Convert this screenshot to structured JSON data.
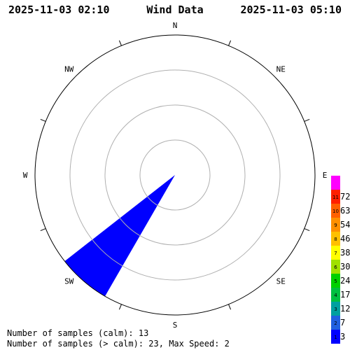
{
  "header": {
    "start_time": "2025-11-03 02:10",
    "title": "Wind Data",
    "end_time": "2025-11-03 05:10"
  },
  "footer": {
    "calm_samples_text": "Number of samples (calm): 13",
    "samples_text": "Number of samples (> calm): 23,  Max Speed: 2"
  },
  "colors": {
    "wedge": "#0000ff",
    "ring": "#b0b0b0",
    "outline": "#000000"
  },
  "chart_data": {
    "type": "wind-rose",
    "directions": [
      "N",
      "NE",
      "E",
      "SE",
      "S",
      "SW",
      "W",
      "NW"
    ],
    "rings": 4,
    "sectors": [
      {
        "from_deg": 210,
        "to_deg": 232,
        "radius_fraction": 1.0,
        "color": "#0000ff"
      }
    ],
    "scale": {
      "labels": [
        "3",
        "7",
        "12",
        "17",
        "24",
        "30",
        "38",
        "46",
        "54",
        "63",
        "72"
      ],
      "inner_labels": [
        "1",
        "2",
        "3",
        "4",
        "5",
        "6",
        "7",
        "8",
        "9",
        "10",
        "11",
        ""
      ],
      "colors": [
        "#0000ff",
        "#2060e0",
        "#00a0a0",
        "#00c040",
        "#00d000",
        "#a0e000",
        "#ffff00",
        "#ffc000",
        "#ff9000",
        "#ff6000",
        "#ff2000",
        "#ff00ff"
      ]
    },
    "max_speed": 2
  }
}
